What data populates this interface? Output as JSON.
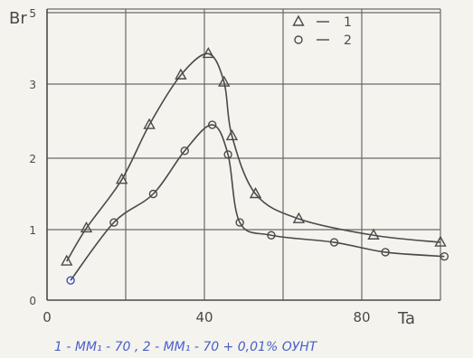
{
  "chart_data": {
    "type": "line",
    "title": "",
    "ylabel": "Br",
    "xlabel": "Ta",
    "xlim": [
      0,
      100
    ],
    "ylim": [
      0,
      6
    ],
    "x_ticks": [
      "0",
      "40",
      "80"
    ],
    "y_ticks": [
      "0",
      "1",
      "2",
      "3",
      "5"
    ],
    "grid": true,
    "legend_position": "top-right",
    "series": [
      {
        "name": "1",
        "marker": "triangle",
        "x": [
          5,
          10,
          19,
          26,
          34,
          41,
          45,
          47,
          53,
          64,
          83,
          100
        ],
        "y": [
          0.55,
          1.02,
          1.7,
          2.45,
          3.25,
          3.85,
          3.05,
          2.3,
          1.5,
          1.15,
          0.92,
          0.82
        ]
      },
      {
        "name": "2",
        "marker": "circle",
        "x": [
          6,
          17,
          27,
          35,
          42,
          46,
          49,
          57,
          73,
          86,
          101
        ],
        "y": [
          0.28,
          1.1,
          1.5,
          2.1,
          2.45,
          2.05,
          1.1,
          0.92,
          0.82,
          0.68,
          0.62
        ]
      }
    ],
    "annotation": "1 - MM₁ - 70 , 2 - MM₁ - 70 + 0,01% ОУНТ"
  },
  "colors": {
    "paper": "#f4f3ee",
    "ink": "#4a4a4a",
    "grid": "#6a6a6a",
    "caption": "#4a60c8",
    "highlight_marker": "#3b4fc4"
  }
}
